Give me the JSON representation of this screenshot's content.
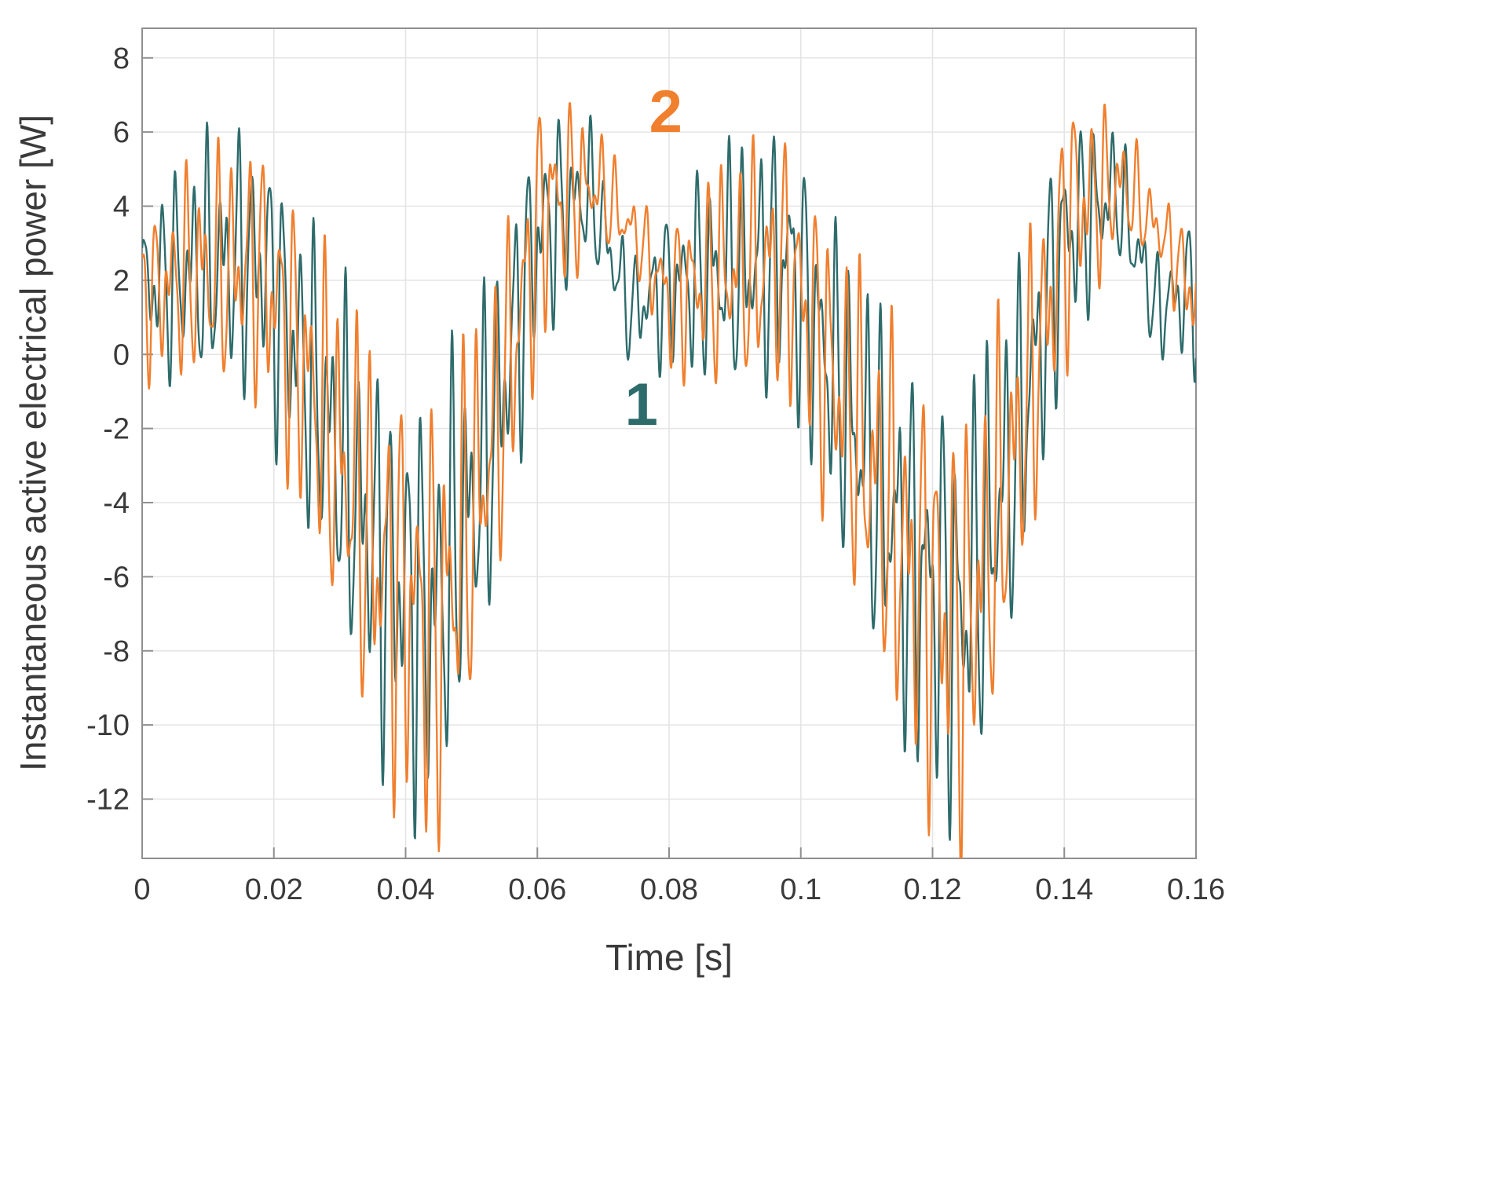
{
  "chart_data": {
    "type": "line",
    "title": "",
    "xlabel": "Time [s]",
    "ylabel": "Instantaneous active electrical power [W]",
    "xlim": [
      0,
      0.16
    ],
    "ylim": [
      -13.6,
      8.8
    ],
    "xticks": [
      0,
      0.02,
      0.04,
      0.06,
      0.08,
      0.1,
      0.12,
      0.14,
      0.16
    ],
    "xtick_labels": [
      "0",
      "0.02",
      "0.04",
      "0.06",
      "0.08",
      "0.1",
      "0.12",
      "0.14",
      "0.16"
    ],
    "yticks": [
      -12,
      -10,
      -8,
      -6,
      -4,
      -2,
      0,
      2,
      4,
      6,
      8
    ],
    "ytick_labels": [
      "-12",
      "-10",
      "-8",
      "-6",
      "-4",
      "-2",
      "0",
      "2",
      "4",
      "6",
      "8"
    ],
    "grid": true,
    "grid_color": "#e4e4e4",
    "axis_color": "#8f8f8f",
    "text_color": "#3a3a3a",
    "legend_position": "inline-annotations",
    "envelope_period": 0.08,
    "sample_step": 8e-05,
    "series": [
      {
        "name": "1",
        "color": "#2e6b6b",
        "line_width": 2.4,
        "description": "noisy oscillation, period 0.08 s envelope, peaks ~6.6 W, troughs clipped below -13 W",
        "mean_keypoints": [
          [
            0,
            1.8
          ],
          [
            0.008,
            2.3
          ],
          [
            0.018,
            2.6
          ],
          [
            0.026,
            -1.0
          ],
          [
            0.036,
            -5.5
          ],
          [
            0.044,
            -7.2
          ],
          [
            0.052,
            -3.0
          ],
          [
            0.06,
            3.2
          ],
          [
            0.068,
            4.4
          ],
          [
            0.074,
            1.2
          ],
          [
            0.08,
            1.8
          ]
        ],
        "amp_keypoints": [
          [
            0,
            2.2
          ],
          [
            0.008,
            3.2
          ],
          [
            0.018,
            3.6
          ],
          [
            0.026,
            4.2
          ],
          [
            0.036,
            5.2
          ],
          [
            0.044,
            5.8
          ],
          [
            0.052,
            4.6
          ],
          [
            0.06,
            3.2
          ],
          [
            0.068,
            1.8
          ],
          [
            0.074,
            1.4
          ],
          [
            0.08,
            2.2
          ]
        ],
        "oscillators": [
          [
            430,
            0.0,
            0.6
          ],
          [
            617,
            1.2,
            0.42
          ],
          [
            997,
            2.6,
            0.18
          ]
        ]
      },
      {
        "name": "2",
        "color": "#f07f2e",
        "line_width": 2.4,
        "description": "noisy oscillation, period 0.08 s envelope, peaks ~8.4 W, troughs ~ -13 W",
        "mean_keypoints": [
          [
            0,
            1.5
          ],
          [
            0.008,
            2.2
          ],
          [
            0.018,
            2.4
          ],
          [
            0.027,
            -1.5
          ],
          [
            0.037,
            -6.0
          ],
          [
            0.045,
            -7.5
          ],
          [
            0.053,
            -2.5
          ],
          [
            0.061,
            4.0
          ],
          [
            0.069,
            4.6
          ],
          [
            0.075,
            3.2
          ],
          [
            0.08,
            1.5
          ]
        ],
        "amp_keypoints": [
          [
            0,
            2.0
          ],
          [
            0.008,
            3.0
          ],
          [
            0.018,
            3.4
          ],
          [
            0.027,
            4.4
          ],
          [
            0.037,
            5.5
          ],
          [
            0.045,
            6.0
          ],
          [
            0.053,
            4.4
          ],
          [
            0.061,
            3.4
          ],
          [
            0.069,
            1.6
          ],
          [
            0.075,
            1.0
          ],
          [
            0.08,
            2.0
          ]
        ],
        "oscillators": [
          [
            430,
            2.1,
            0.6
          ],
          [
            617,
            0.5,
            0.42
          ],
          [
            997,
            4.4,
            0.18
          ]
        ]
      }
    ],
    "annotations": [
      {
        "text": "2",
        "color": "#f07f2e",
        "x": 0.0795,
        "y": 6.0
      },
      {
        "text": "1",
        "color": "#2e6b6b",
        "x": 0.0758,
        "y": -1.9
      }
    ]
  }
}
